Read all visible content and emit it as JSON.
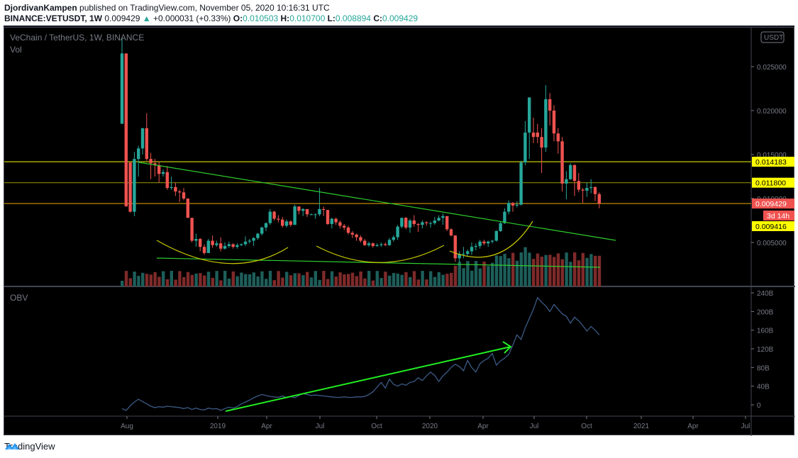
{
  "header": {
    "author": "DjordivanKampen",
    "published_text": " published on TradingView.com, November 05, 2020 10:16:31 UTC",
    "symbol": "BINANCE:VETUSDT, 1W",
    "last": "0.009429",
    "change_arrow": "▲",
    "change": "+0.000031 (+0.33%)",
    "o_label": "O:",
    "o": "0.010503",
    "h_label": "H:",
    "h": "0.010700",
    "l_label": "L:",
    "l": "0.008894",
    "c_label": "C:",
    "c": "0.009429"
  },
  "chart": {
    "title": "VeChain / TetherUS, 1W, BINANCE",
    "vol_label": "Vol",
    "obv_label": "OBV",
    "currency_badge": "USDT",
    "countdown": "3d 14h",
    "colors": {
      "up": "#26a69a",
      "down": "#ef5350",
      "vol_up": "#1d5e5a",
      "vol_down": "#7f2a2a",
      "obv": "#3c5a86",
      "hline": "#d4d400",
      "trend": "#2ecc2e",
      "arc": "#c8c800",
      "bg": "#000000"
    }
  },
  "footer": {
    "brand": "TradingView"
  },
  "chart_data": [
    {
      "type": "candlestick",
      "title": "VeChain / TetherUS, 1W, BINANCE",
      "xlabel": "",
      "ylabel": "USDT",
      "ylim": [
        0,
        0.028
      ],
      "y_ticks": [
        "0.025000",
        "0.020000",
        "0.015000",
        "0.010000",
        "0.005000"
      ],
      "x_ticks": [
        "Aug",
        "2019",
        "Apr",
        "Jul",
        "Oct",
        "2020",
        "Apr",
        "Jul",
        "Oct",
        "2021",
        "Apr",
        "Jul"
      ],
      "price_labels": [
        {
          "value": "0.014183",
          "kind": "horizontal-line",
          "color": "#ffff00"
        },
        {
          "value": "0.011800",
          "kind": "horizontal-line",
          "color": "#ffff00"
        },
        {
          "value": "0.009429",
          "kind": "last-price",
          "color": "#ef5350"
        },
        {
          "value": "0.009416",
          "kind": "horizontal-line",
          "color": "#ffff00"
        }
      ],
      "candles": [
        {
          "o": 0.0185,
          "h": 0.0282,
          "l": 0.0185,
          "c": 0.0265
        },
        {
          "o": 0.0265,
          "h": 0.0265,
          "l": 0.0091,
          "c": 0.0091
        },
        {
          "o": 0.0141,
          "h": 0.0141,
          "l": 0.0084,
          "c": 0.0085
        },
        {
          "o": 0.0085,
          "h": 0.0153,
          "l": 0.008,
          "c": 0.0145
        },
        {
          "o": 0.0145,
          "h": 0.016,
          "l": 0.0125,
          "c": 0.0157
        },
        {
          "o": 0.0157,
          "h": 0.018,
          "l": 0.015,
          "c": 0.018
        },
        {
          "o": 0.018,
          "h": 0.0197,
          "l": 0.0143,
          "c": 0.0145
        },
        {
          "o": 0.0145,
          "h": 0.0152,
          "l": 0.0122,
          "c": 0.014
        },
        {
          "o": 0.014,
          "h": 0.0145,
          "l": 0.0125,
          "c": 0.0138
        },
        {
          "o": 0.0138,
          "h": 0.0142,
          "l": 0.0118,
          "c": 0.0128
        },
        {
          "o": 0.0128,
          "h": 0.0133,
          "l": 0.0125,
          "c": 0.013
        },
        {
          "o": 0.013,
          "h": 0.0137,
          "l": 0.011,
          "c": 0.0112
        },
        {
          "o": 0.0112,
          "h": 0.0125,
          "l": 0.011,
          "c": 0.0113
        },
        {
          "o": 0.0113,
          "h": 0.0118,
          "l": 0.0103,
          "c": 0.0108
        },
        {
          "o": 0.0108,
          "h": 0.011,
          "l": 0.0096,
          "c": 0.0107
        },
        {
          "o": 0.0107,
          "h": 0.0112,
          "l": 0.0098,
          "c": 0.01
        },
        {
          "o": 0.01,
          "h": 0.01,
          "l": 0.0078,
          "c": 0.0078
        },
        {
          "o": 0.0078,
          "h": 0.0078,
          "l": 0.005,
          "c": 0.0052
        },
        {
          "o": 0.0052,
          "h": 0.006,
          "l": 0.0045,
          "c": 0.0054
        },
        {
          "o": 0.0054,
          "h": 0.0055,
          "l": 0.004,
          "c": 0.0045
        },
        {
          "o": 0.0045,
          "h": 0.0048,
          "l": 0.0036,
          "c": 0.0038
        },
        {
          "o": 0.0038,
          "h": 0.0054,
          "l": 0.0038,
          "c": 0.0052
        },
        {
          "o": 0.0052,
          "h": 0.0058,
          "l": 0.0044,
          "c": 0.0047
        },
        {
          "o": 0.0047,
          "h": 0.0052,
          "l": 0.0045,
          "c": 0.0049
        },
        {
          "o": 0.0049,
          "h": 0.0056,
          "l": 0.004,
          "c": 0.0043
        },
        {
          "o": 0.0043,
          "h": 0.005,
          "l": 0.0042,
          "c": 0.0046
        },
        {
          "o": 0.0046,
          "h": 0.0051,
          "l": 0.0044,
          "c": 0.0048
        },
        {
          "o": 0.0048,
          "h": 0.0049,
          "l": 0.0043,
          "c": 0.0045
        },
        {
          "o": 0.0045,
          "h": 0.0049,
          "l": 0.0043,
          "c": 0.0047
        },
        {
          "o": 0.0047,
          "h": 0.0049,
          "l": 0.0046,
          "c": 0.0048
        },
        {
          "o": 0.0048,
          "h": 0.0057,
          "l": 0.0046,
          "c": 0.0051
        },
        {
          "o": 0.0051,
          "h": 0.0054,
          "l": 0.0049,
          "c": 0.0052
        },
        {
          "o": 0.0052,
          "h": 0.0056,
          "l": 0.0046,
          "c": 0.0055
        },
        {
          "o": 0.0055,
          "h": 0.0061,
          "l": 0.0053,
          "c": 0.006
        },
        {
          "o": 0.006,
          "h": 0.0068,
          "l": 0.0058,
          "c": 0.0067
        },
        {
          "o": 0.0067,
          "h": 0.0073,
          "l": 0.0063,
          "c": 0.0072
        },
        {
          "o": 0.0072,
          "h": 0.0088,
          "l": 0.007,
          "c": 0.0085
        },
        {
          "o": 0.0085,
          "h": 0.0086,
          "l": 0.0075,
          "c": 0.0077
        },
        {
          "o": 0.0077,
          "h": 0.0081,
          "l": 0.0073,
          "c": 0.0076
        },
        {
          "o": 0.0076,
          "h": 0.0079,
          "l": 0.0067,
          "c": 0.0069
        },
        {
          "o": 0.0069,
          "h": 0.0076,
          "l": 0.0067,
          "c": 0.0074
        },
        {
          "o": 0.0074,
          "h": 0.0075,
          "l": 0.0068,
          "c": 0.007
        },
        {
          "o": 0.007,
          "h": 0.0093,
          "l": 0.007,
          "c": 0.0091
        },
        {
          "o": 0.0091,
          "h": 0.0091,
          "l": 0.0082,
          "c": 0.0086
        },
        {
          "o": 0.0086,
          "h": 0.0089,
          "l": 0.008,
          "c": 0.0088
        },
        {
          "o": 0.0088,
          "h": 0.0088,
          "l": 0.0079,
          "c": 0.0082
        },
        {
          "o": 0.0082,
          "h": 0.0083,
          "l": 0.0081,
          "c": 0.0082
        },
        {
          "o": 0.0082,
          "h": 0.0083,
          "l": 0.0077,
          "c": 0.0082
        },
        {
          "o": 0.0082,
          "h": 0.0112,
          "l": 0.008,
          "c": 0.0088
        },
        {
          "o": 0.0088,
          "h": 0.0091,
          "l": 0.008,
          "c": 0.0087
        },
        {
          "o": 0.0087,
          "h": 0.0087,
          "l": 0.007,
          "c": 0.0071
        },
        {
          "o": 0.0071,
          "h": 0.0078,
          "l": 0.0066,
          "c": 0.0077
        },
        {
          "o": 0.0077,
          "h": 0.0078,
          "l": 0.007,
          "c": 0.0073
        },
        {
          "o": 0.0073,
          "h": 0.0075,
          "l": 0.0066,
          "c": 0.0069
        },
        {
          "o": 0.0069,
          "h": 0.0071,
          "l": 0.0064,
          "c": 0.0067
        },
        {
          "o": 0.0067,
          "h": 0.0069,
          "l": 0.0059,
          "c": 0.0061
        },
        {
          "o": 0.0061,
          "h": 0.0063,
          "l": 0.0055,
          "c": 0.0059
        },
        {
          "o": 0.0059,
          "h": 0.006,
          "l": 0.0052,
          "c": 0.0056
        },
        {
          "o": 0.0056,
          "h": 0.0058,
          "l": 0.005,
          "c": 0.0052
        },
        {
          "o": 0.0052,
          "h": 0.0054,
          "l": 0.0046,
          "c": 0.0047
        },
        {
          "o": 0.0047,
          "h": 0.0051,
          "l": 0.0045,
          "c": 0.0049
        },
        {
          "o": 0.0049,
          "h": 0.005,
          "l": 0.0044,
          "c": 0.0046
        },
        {
          "o": 0.0046,
          "h": 0.0049,
          "l": 0.0045,
          "c": 0.0047
        },
        {
          "o": 0.0047,
          "h": 0.005,
          "l": 0.0045,
          "c": 0.0048
        },
        {
          "o": 0.0048,
          "h": 0.005,
          "l": 0.0046,
          "c": 0.0047
        },
        {
          "o": 0.0047,
          "h": 0.0055,
          "l": 0.0046,
          "c": 0.0053
        },
        {
          "o": 0.0053,
          "h": 0.0058,
          "l": 0.0051,
          "c": 0.0056
        },
        {
          "o": 0.0056,
          "h": 0.007,
          "l": 0.0053,
          "c": 0.0068
        },
        {
          "o": 0.0068,
          "h": 0.0078,
          "l": 0.0066,
          "c": 0.0078
        },
        {
          "o": 0.0078,
          "h": 0.0079,
          "l": 0.0065,
          "c": 0.0067
        },
        {
          "o": 0.0067,
          "h": 0.0077,
          "l": 0.0061,
          "c": 0.0075
        },
        {
          "o": 0.0075,
          "h": 0.0081,
          "l": 0.0068,
          "c": 0.0071
        },
        {
          "o": 0.0071,
          "h": 0.0072,
          "l": 0.0062,
          "c": 0.007
        },
        {
          "o": 0.007,
          "h": 0.0075,
          "l": 0.0066,
          "c": 0.0073
        },
        {
          "o": 0.0073,
          "h": 0.0074,
          "l": 0.0069,
          "c": 0.0072
        },
        {
          "o": 0.0072,
          "h": 0.0074,
          "l": 0.0067,
          "c": 0.0072
        },
        {
          "o": 0.0072,
          "h": 0.0079,
          "l": 0.007,
          "c": 0.0075
        },
        {
          "o": 0.0075,
          "h": 0.0081,
          "l": 0.0074,
          "c": 0.0078
        },
        {
          "o": 0.0078,
          "h": 0.0083,
          "l": 0.007,
          "c": 0.008
        },
        {
          "o": 0.008,
          "h": 0.008,
          "l": 0.0063,
          "c": 0.0065
        },
        {
          "o": 0.0065,
          "h": 0.0066,
          "l": 0.0057,
          "c": 0.0058
        },
        {
          "o": 0.0058,
          "h": 0.0058,
          "l": 0.0028,
          "c": 0.0032
        },
        {
          "o": 0.0032,
          "h": 0.004,
          "l": 0.0027,
          "c": 0.0037
        },
        {
          "o": 0.0037,
          "h": 0.0045,
          "l": 0.0032,
          "c": 0.0037
        },
        {
          "o": 0.0037,
          "h": 0.0042,
          "l": 0.0034,
          "c": 0.004
        },
        {
          "o": 0.004,
          "h": 0.005,
          "l": 0.0036,
          "c": 0.0045
        },
        {
          "o": 0.0045,
          "h": 0.0049,
          "l": 0.0041,
          "c": 0.0046
        },
        {
          "o": 0.0046,
          "h": 0.0053,
          "l": 0.0043,
          "c": 0.0051
        },
        {
          "o": 0.0051,
          "h": 0.0053,
          "l": 0.0047,
          "c": 0.0049
        },
        {
          "o": 0.0049,
          "h": 0.0052,
          "l": 0.0045,
          "c": 0.0051
        },
        {
          "o": 0.0051,
          "h": 0.0053,
          "l": 0.0049,
          "c": 0.0052
        },
        {
          "o": 0.0052,
          "h": 0.0064,
          "l": 0.0051,
          "c": 0.0063
        },
        {
          "o": 0.0063,
          "h": 0.0074,
          "l": 0.0062,
          "c": 0.0072
        },
        {
          "o": 0.0072,
          "h": 0.0089,
          "l": 0.0071,
          "c": 0.0085
        },
        {
          "o": 0.0085,
          "h": 0.0098,
          "l": 0.0082,
          "c": 0.0095
        },
        {
          "o": 0.0095,
          "h": 0.0096,
          "l": 0.0085,
          "c": 0.0092
        },
        {
          "o": 0.0092,
          "h": 0.0097,
          "l": 0.009,
          "c": 0.0093
        },
        {
          "o": 0.0093,
          "h": 0.0143,
          "l": 0.0092,
          "c": 0.0141
        },
        {
          "o": 0.0141,
          "h": 0.0188,
          "l": 0.0138,
          "c": 0.0175
        },
        {
          "o": 0.0175,
          "h": 0.0213,
          "l": 0.0145,
          "c": 0.0215
        },
        {
          "o": 0.0175,
          "h": 0.0192,
          "l": 0.0163,
          "c": 0.017
        },
        {
          "o": 0.0175,
          "h": 0.0185,
          "l": 0.0163,
          "c": 0.017
        },
        {
          "o": 0.017,
          "h": 0.018,
          "l": 0.0129,
          "c": 0.0158
        },
        {
          "o": 0.0158,
          "h": 0.0229,
          "l": 0.0153,
          "c": 0.0213
        },
        {
          "o": 0.0213,
          "h": 0.022,
          "l": 0.0183,
          "c": 0.02
        },
        {
          "o": 0.02,
          "h": 0.0206,
          "l": 0.0165,
          "c": 0.0174
        },
        {
          "o": 0.0174,
          "h": 0.018,
          "l": 0.0151,
          "c": 0.0165
        },
        {
          "o": 0.0165,
          "h": 0.017,
          "l": 0.0108,
          "c": 0.0117
        },
        {
          "o": 0.0117,
          "h": 0.0131,
          "l": 0.0099,
          "c": 0.0122
        },
        {
          "o": 0.0122,
          "h": 0.014,
          "l": 0.0121,
          "c": 0.0138
        },
        {
          "o": 0.0138,
          "h": 0.0139,
          "l": 0.0103,
          "c": 0.012
        },
        {
          "o": 0.012,
          "h": 0.0129,
          "l": 0.0107,
          "c": 0.011
        },
        {
          "o": 0.011,
          "h": 0.0112,
          "l": 0.0095,
          "c": 0.0109
        },
        {
          "o": 0.0109,
          "h": 0.0118,
          "l": 0.0102,
          "c": 0.0112
        },
        {
          "o": 0.0112,
          "h": 0.0122,
          "l": 0.0106,
          "c": 0.0113
        },
        {
          "o": 0.0113,
          "h": 0.0114,
          "l": 0.0097,
          "c": 0.0105
        },
        {
          "o": 0.010503,
          "h": 0.0107,
          "l": 0.008894,
          "c": 0.009429
        }
      ]
    },
    {
      "type": "line",
      "title": "OBV",
      "ylabel": "OBV",
      "ylim": [
        -20,
        250
      ],
      "y_ticks": [
        "240B",
        "200B",
        "160B",
        "120B",
        "80B",
        "40B",
        "0"
      ],
      "series": [
        {
          "name": "OBV",
          "values": [
            -8,
            -12,
            -2,
            6,
            12,
            7,
            2,
            -3,
            -6,
            -4,
            -5,
            -3,
            -4,
            -5,
            -6,
            -8,
            -6,
            -10,
            -7,
            -10,
            -11,
            -7,
            -9,
            -8,
            -12,
            -8,
            -5,
            -7,
            -4,
            2,
            6,
            10,
            15,
            19,
            22,
            20,
            18,
            17,
            16,
            19,
            15,
            18,
            15,
            20,
            24,
            22,
            20,
            21,
            20,
            19,
            18,
            17,
            16,
            16,
            17,
            16,
            16,
            17,
            17,
            18,
            22,
            28,
            38,
            48,
            36,
            55,
            44,
            40,
            45,
            42,
            48,
            50,
            58,
            52,
            62,
            70,
            63,
            50,
            62,
            70,
            80,
            87,
            82,
            73,
            95,
            80,
            70,
            88,
            95,
            100,
            110,
            85,
            94,
            100,
            108,
            128,
            150,
            140,
            165,
            185,
            205,
            230,
            220,
            212,
            200,
            215,
            205,
            195,
            190,
            175,
            188,
            180,
            170,
            158,
            168,
            160,
            150
          ]
        }
      ],
      "annotations": [
        "green trend arrow on OBV rising from early 2019 to June 2020"
      ]
    }
  ]
}
